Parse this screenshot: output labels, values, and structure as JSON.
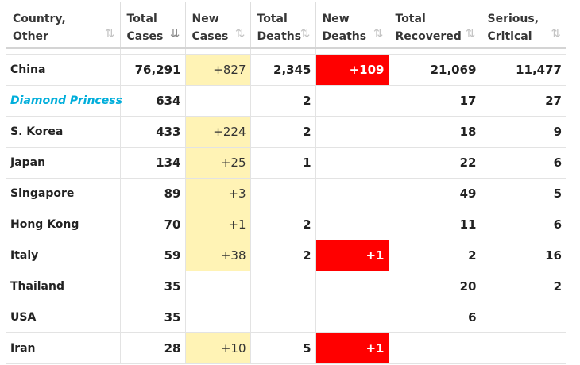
{
  "colors": {
    "new_cases_highlight": "#fff3b5",
    "new_deaths_highlight": "#ff0000",
    "ship_text": "#00aedb"
  },
  "headers": [
    {
      "line1": "Country,",
      "line2": "Other",
      "sort_icon": "sort-both-icon",
      "sort_glyph": "⇅"
    },
    {
      "line1": "Total",
      "line2": "Cases",
      "sort_icon": "sort-descending-icon",
      "sort_glyph": "⇊"
    },
    {
      "line1": "New",
      "line2": "Cases",
      "sort_icon": "sort-both-icon",
      "sort_glyph": "⇅"
    },
    {
      "line1": "Total",
      "line2": "Deaths",
      "sort_icon": "sort-both-icon",
      "sort_glyph": "⇅"
    },
    {
      "line1": "New",
      "line2": "Deaths",
      "sort_icon": "sort-both-icon",
      "sort_glyph": "⇅"
    },
    {
      "line1": "Total",
      "line2": "Recovered",
      "sort_icon": "sort-both-icon",
      "sort_glyph": "⇅"
    },
    {
      "line1": "Serious,",
      "line2": "Critical",
      "sort_icon": "sort-both-icon",
      "sort_glyph": "⇅"
    }
  ],
  "rows": [
    {
      "country": "China",
      "total_cases": "76,291",
      "new_cases": "+827",
      "total_deaths": "2,345",
      "new_deaths": "+109",
      "total_recovered": "21,069",
      "serious_critical": "11,477"
    },
    {
      "country": "Diamond Princess",
      "total_cases": "634",
      "new_cases": "",
      "total_deaths": "2",
      "new_deaths": "",
      "total_recovered": "17",
      "serious_critical": "27"
    },
    {
      "country": "S. Korea",
      "total_cases": "433",
      "new_cases": "+224",
      "total_deaths": "2",
      "new_deaths": "",
      "total_recovered": "18",
      "serious_critical": "9"
    },
    {
      "country": "Japan",
      "total_cases": "134",
      "new_cases": "+25",
      "total_deaths": "1",
      "new_deaths": "",
      "total_recovered": "22",
      "serious_critical": "6"
    },
    {
      "country": "Singapore",
      "total_cases": "89",
      "new_cases": "+3",
      "total_deaths": "",
      "new_deaths": "",
      "total_recovered": "49",
      "serious_critical": "5"
    },
    {
      "country": "Hong Kong",
      "total_cases": "70",
      "new_cases": "+1",
      "total_deaths": "2",
      "new_deaths": "",
      "total_recovered": "11",
      "serious_critical": "6"
    },
    {
      "country": "Italy",
      "total_cases": "59",
      "new_cases": "+38",
      "total_deaths": "2",
      "new_deaths": "+1",
      "total_recovered": "2",
      "serious_critical": "16"
    },
    {
      "country": "Thailand",
      "total_cases": "35",
      "new_cases": "",
      "total_deaths": "",
      "new_deaths": "",
      "total_recovered": "20",
      "serious_critical": "2"
    },
    {
      "country": "USA",
      "total_cases": "35",
      "new_cases": "",
      "total_deaths": "",
      "new_deaths": "",
      "total_recovered": "6",
      "serious_critical": ""
    },
    {
      "country": "Iran",
      "total_cases": "28",
      "new_cases": "+10",
      "total_deaths": "5",
      "new_deaths": "+1",
      "total_recovered": "",
      "serious_critical": ""
    }
  ]
}
